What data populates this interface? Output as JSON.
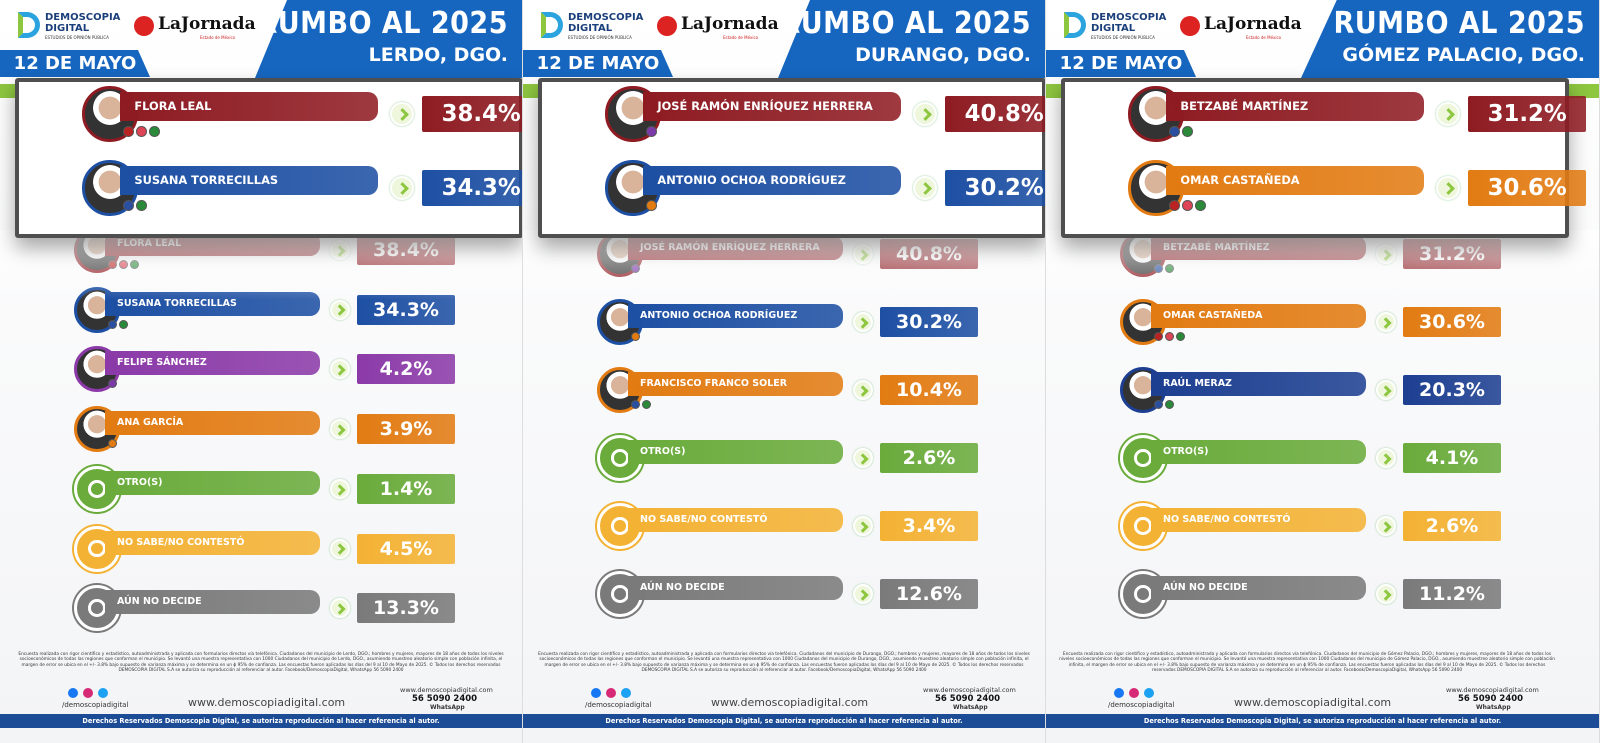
{
  "brand": {
    "name": "DEMOSCOPIA DIGITAL",
    "tagline": "ESTUDIOS DE OPINIÓN PÚBLICA",
    "partner": "LaJornada",
    "partner_tagline": "Estado de México"
  },
  "title": "RUMBO AL 2025",
  "date": "12 DE MAYO",
  "panels": [
    {
      "place": "LERDO, DGO.",
      "highlight": [
        0,
        1
      ],
      "rows": [
        {
          "name": "FLORA LEAL",
          "value": "38.4%",
          "color": "#8e1b22",
          "kind": "candidate"
        },
        {
          "name": "SUSANA TORRECILLAS",
          "value": "34.3%",
          "color": "#1d4fa3",
          "kind": "candidate"
        },
        {
          "name": "FELIPE SÁNCHEZ",
          "value": "4.2%",
          "color": "#8b3aa8",
          "kind": "candidate"
        },
        {
          "name": "ANA GARCÍA",
          "value": "3.9%",
          "color": "#e27b12",
          "kind": "candidate"
        },
        {
          "name": "OTRO(S)",
          "value": "1.4%",
          "color": "#6aab3b",
          "kind": "other"
        },
        {
          "name": "NO SABE/NO CONTESTÓ",
          "value": "4.5%",
          "color": "#f4b234",
          "kind": "unknown"
        },
        {
          "name": "AÚN NO DECIDE",
          "value": "13.3%",
          "color": "#7a7a7a",
          "kind": "undecided"
        }
      ],
      "note": "Encuesta realizada con rigor científico y estadístico, autoadministrada y aplicada con formularios directos vía telefónica. Ciudadanos del municipio de Lerdo, DGO.; hombres y mujeres, mayores de 18 años de todos los niveles socioeconómicos de todas las regiones que conforman el municipio. Se levantó una muestra representativa con 1000 Ciudadanos del municipio de Lerdo, DGO., asumiendo muestreo aleatorio simple con población infinita, el margen de error se ubica en el +/- 3.8% bajo supuesto de varianza máxima y se determina en un ɸ 95% de confianza. Las encuestas fueron aplicadas los días del 9 al 10 de Mayo de 2025. © Todos los derechos reservados DEMOSCOPIA DIGITAL S.A se autoriza su reproducción al referenciar al autor. Facebook/DemoscopiaDigital, WhatsApp 56 5090 2400"
    },
    {
      "place": "DURANGO, DGO.",
      "highlight": [
        0,
        1
      ],
      "rows": [
        {
          "name": "JOSÉ RAMÓN ENRÍQUEZ HERRERA",
          "value": "40.8%",
          "color": "#8e1b22",
          "kind": "candidate"
        },
        {
          "name": "ANTONIO OCHOA RODRÍGUEZ",
          "value": "30.2%",
          "color": "#1d4fa3",
          "kind": "candidate"
        },
        {
          "name": "FRANCISCO FRANCO SOLER",
          "value": "10.4%",
          "color": "#e27b12",
          "kind": "candidate"
        },
        {
          "name": "OTRO(S)",
          "value": "2.6%",
          "color": "#6aab3b",
          "kind": "other"
        },
        {
          "name": "NO SABE/NO CONTESTÓ",
          "value": "3.4%",
          "color": "#f4b234",
          "kind": "unknown"
        },
        {
          "name": "AÚN NO DECIDE",
          "value": "12.6%",
          "color": "#7a7a7a",
          "kind": "undecided"
        }
      ],
      "note": "Encuesta realizada con rigor científico y estadístico, autoadministrada y aplicada con formularios directos vía telefónica. Ciudadanos del municipio de Durango, DGO.; hombres y mujeres, mayores de 18 años de todos los niveles socioeconómicos de todas las regiones que conforman el municipio. Se levantó una muestra representativa con 1000 Ciudadanos del municipio de Durango, DGO., asumiendo muestreo aleatorio simple con población infinita, el margen de error se ubica en el +/- 3.8% bajo supuesto de varianza máxima y se determina en un ɸ 95% de confianza. Las encuestas fueron aplicadas los días del 9 al 10 de Mayo de 2025. © Todos los derechos reservados DEMOSCOPIA DIGITAL S.A se autoriza su reproducción al referenciar al autor. Facebook/DemoscopiaDigital, WhatsApp 56 5090 2400"
    },
    {
      "place": "GÓMEZ PALACIO, DGO.",
      "highlight": [
        0,
        1
      ],
      "rows": [
        {
          "name": "BETZABÉ MARTÍNEZ",
          "value": "31.2%",
          "color": "#8e1b22",
          "kind": "candidate"
        },
        {
          "name": "OMAR CASTAÑEDA",
          "value": "30.6%",
          "color": "#e27b12",
          "kind": "candidate"
        },
        {
          "name": "RAÚL MERAZ",
          "value": "20.3%",
          "color": "#1d3f91",
          "kind": "candidate"
        },
        {
          "name": "OTRO(S)",
          "value": "4.1%",
          "color": "#6aab3b",
          "kind": "other"
        },
        {
          "name": "NO SABE/NO CONTESTÓ",
          "value": "2.6%",
          "color": "#f4b234",
          "kind": "unknown"
        },
        {
          "name": "AÚN NO DECIDE",
          "value": "11.2%",
          "color": "#7a7a7a",
          "kind": "undecided"
        }
      ],
      "note": "Encuesta realizada con rigor científico y estadístico, autoadministrada y aplicada con formularios directos vía telefónica. Ciudadanos del municipio de Gómez Palacio, DGO.; hombres y mujeres, mayores de 18 años de todos los niveles socioeconómicos de todas las regiones que conforman el municipio. Se levantó una muestra representativa con 1000 Ciudadanos del municipio de Gómez Palacio, DGO., asumiendo muestreo aleatorio simple con población infinita, el margen de error se ubica en el +/- 3.8% bajo supuesto de varianza máxima y se determina en un ɸ 95% de confianza. Las encuestas fueron aplicadas los días del 9 al 10 de Mayo de 2025. © Todos los derechos reservados DEMOSCOPIA DIGITAL S.A se autoriza su reproducción al referenciar al autor. Facebook/DemoscopiaDigital, WhatsApp 56 5090 2400"
    }
  ],
  "footer": {
    "social": "/demoscopiadigital",
    "site": "www.demoscopiadigital.com",
    "phone": "56 5090 2400",
    "whatsapp": "WhatsApp",
    "rights": "Derechos Reservados Demoscopia Digital, se autoriza reproducción al hacer referencia al autor."
  }
}
